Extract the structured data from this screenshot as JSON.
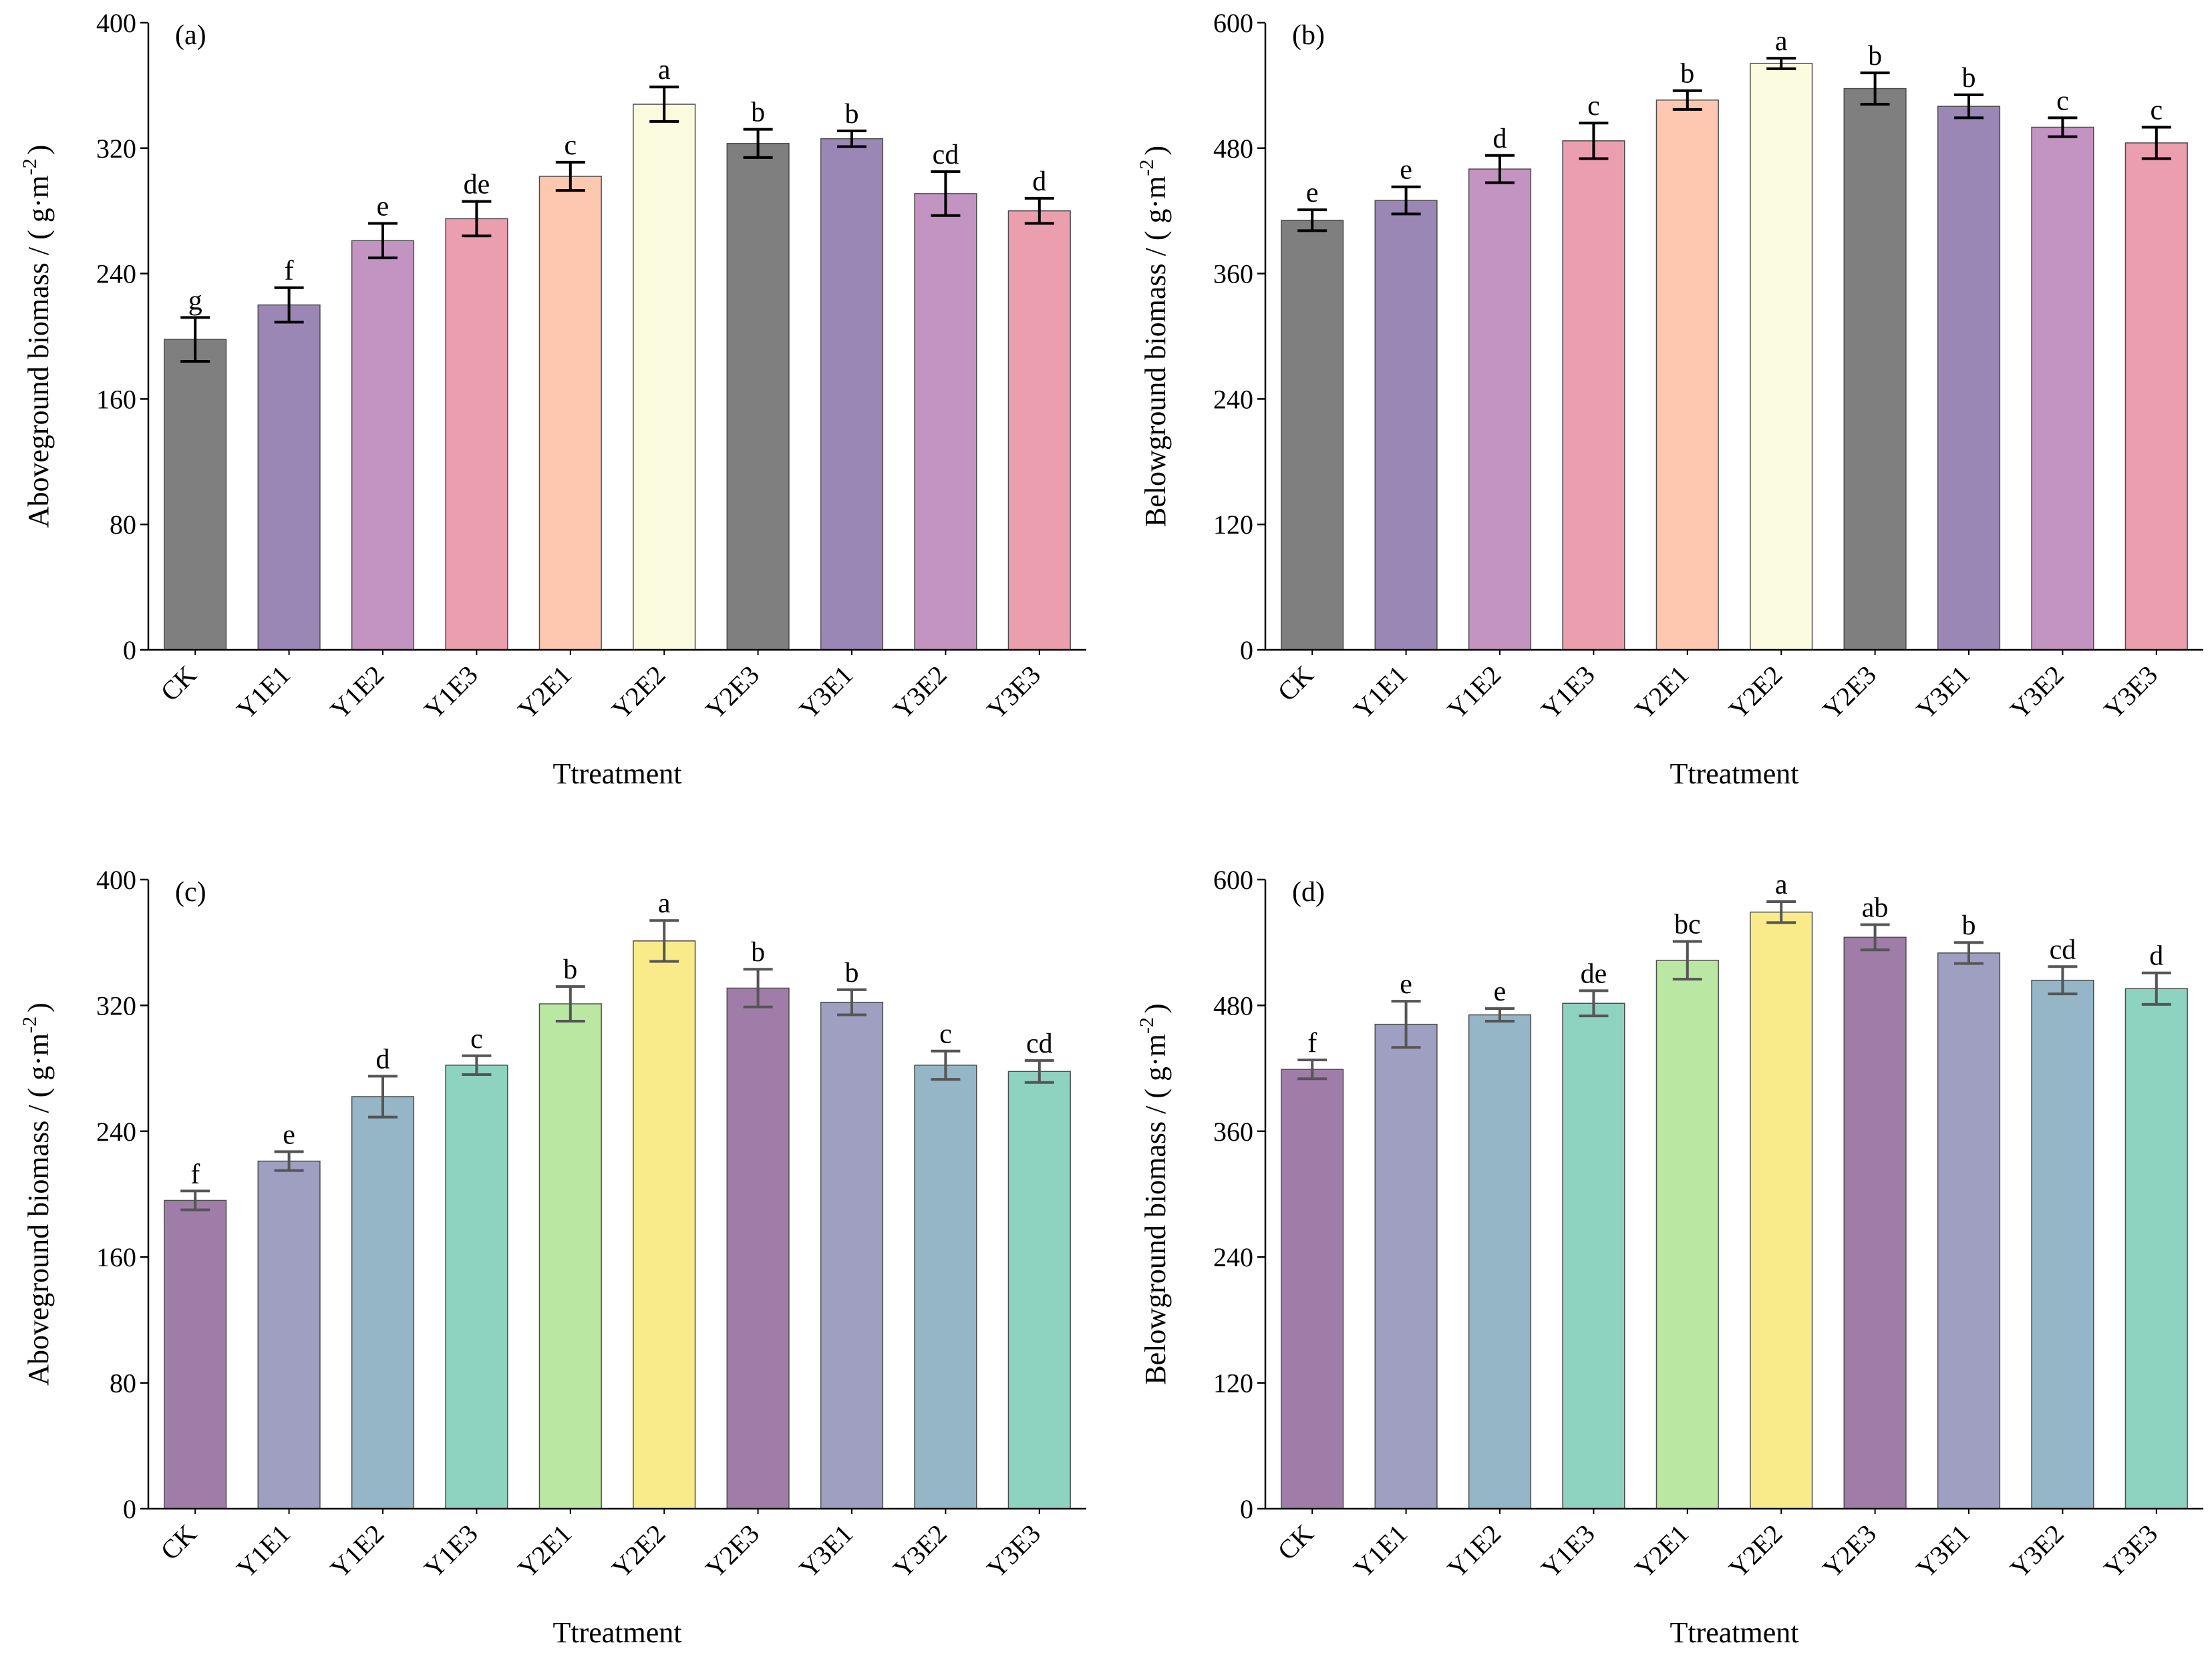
{
  "figure": {
    "categories": [
      "CK",
      "Y1E1",
      "Y1E2",
      "Y1E3",
      "Y2E1",
      "Y2E2",
      "Y2E3",
      "Y3E1",
      "Y3E2",
      "Y3E3"
    ]
  },
  "chart_data": [
    {
      "type": "bar",
      "panel": "(a)",
      "title": "",
      "xlabel": "Ttreatment",
      "ylabel": "Aboveground biomass / ( g·m⁻² )",
      "ylabel_text": "Aboveground biomass / ( g·m",
      "ylabel_exp": "-2",
      "ylabel_close": ")",
      "categories": [
        "CK",
        "Y1E1",
        "Y1E2",
        "Y1E3",
        "Y2E1",
        "Y2E2",
        "Y2E3",
        "Y3E1",
        "Y3E2",
        "Y3E3"
      ],
      "values": [
        198,
        220,
        261,
        275,
        302,
        348,
        323,
        326,
        291,
        280
      ],
      "errors": [
        14,
        11,
        11,
        11,
        9,
        11,
        9,
        5,
        14,
        8
      ],
      "letters": [
        "g",
        "f",
        "e",
        "de",
        "c",
        "a",
        "b",
        "b",
        "cd",
        "d"
      ],
      "ylim": [
        0,
        400
      ],
      "yticks": [
        0,
        80,
        160,
        240,
        320,
        400
      ],
      "colors": [
        "#7f7f7f",
        "#9b87b5",
        "#c393c2",
        "#eb9fae",
        "#fec8b0",
        "#fbfbdf",
        "#7f7f7f",
        "#9b87b5",
        "#c393c2",
        "#eb9fae"
      ],
      "error_color": "#000000"
    },
    {
      "type": "bar",
      "panel": "(b)",
      "title": "",
      "xlabel": "Ttreatment",
      "ylabel": "Belowground  biomass / ( g·m⁻² )",
      "ylabel_text": "Belowground  biomass / ( g·m",
      "ylabel_exp": "-2",
      "ylabel_close": ")",
      "categories": [
        "CK",
        "Y1E1",
        "Y1E2",
        "Y1E3",
        "Y2E1",
        "Y2E2",
        "Y2E3",
        "Y3E1",
        "Y3E2",
        "Y3E3"
      ],
      "values": [
        411,
        430,
        460,
        487,
        526,
        561,
        537,
        520,
        500,
        485
      ],
      "errors": [
        10,
        13,
        13,
        17,
        9,
        5,
        15,
        11,
        9,
        15
      ],
      "letters": [
        "e",
        "e",
        "d",
        "c",
        "b",
        "a",
        "b",
        "b",
        "c",
        "c"
      ],
      "ylim": [
        0,
        600
      ],
      "yticks": [
        0,
        120,
        240,
        360,
        480,
        600
      ],
      "colors": [
        "#7f7f7f",
        "#9b87b5",
        "#c393c2",
        "#eb9fae",
        "#fec8b0",
        "#fbfbdf",
        "#7f7f7f",
        "#9b87b5",
        "#c393c2",
        "#eb9fae"
      ],
      "error_color": "#000000"
    },
    {
      "type": "bar",
      "panel": "(c)",
      "title": "",
      "xlabel": "Ttreatment",
      "ylabel": "Aboveground biomass / ( g·m⁻² )",
      "ylabel_text": "Aboveground biomass / ( g·m",
      "ylabel_exp": "-2",
      "ylabel_close": ")",
      "categories": [
        "CK",
        "Y1E1",
        "Y1E2",
        "Y1E3",
        "Y2E1",
        "Y2E2",
        "Y2E3",
        "Y3E1",
        "Y3E2",
        "Y3E3"
      ],
      "values": [
        196,
        221,
        262,
        282,
        321,
        361,
        331,
        322,
        282,
        278
      ],
      "errors": [
        6,
        6,
        13,
        6,
        11,
        13,
        12,
        8,
        9,
        7
      ],
      "letters": [
        "f",
        "e",
        "d",
        "c",
        "b",
        "a",
        "b",
        "b",
        "c",
        "cd"
      ],
      "ylim": [
        0,
        400
      ],
      "yticks": [
        0,
        80,
        160,
        240,
        320,
        400
      ],
      "colors": [
        "#a07da8",
        "#9f9fc2",
        "#94b6c6",
        "#8ed2c0",
        "#bae8a2",
        "#f9eb8a",
        "#a07da8",
        "#9f9fc2",
        "#94b6c6",
        "#8ed2c0"
      ],
      "error_color": "#555555"
    },
    {
      "type": "bar",
      "panel": "(d)",
      "title": "",
      "xlabel": "Ttreatment",
      "ylabel": "Belowground biomass / ( g·m⁻² )",
      "ylabel_text": "Belowground biomass / ( g·m",
      "ylabel_exp": "-2",
      "ylabel_close": ")",
      "categories": [
        "CK",
        "Y1E1",
        "Y1E2",
        "Y1E3",
        "Y2E1",
        "Y2E2",
        "Y2E3",
        "Y3E1",
        "Y3E2",
        "Y3E3"
      ],
      "values": [
        419,
        462,
        471,
        482,
        523,
        569,
        545,
        530,
        504,
        496
      ],
      "errors": [
        9,
        22,
        6,
        12,
        18,
        10,
        12,
        10,
        13,
        15
      ],
      "letters": [
        "f",
        "e",
        "e",
        "de",
        "bc",
        "a",
        "ab",
        "b",
        "cd",
        "d"
      ],
      "ylim": [
        0,
        600
      ],
      "yticks": [
        0,
        120,
        240,
        360,
        480,
        600
      ],
      "colors": [
        "#a07da8",
        "#9f9fc2",
        "#94b6c6",
        "#8ed2c0",
        "#bae8a2",
        "#f9eb8a",
        "#a07da8",
        "#9f9fc2",
        "#94b6c6",
        "#8ed2c0"
      ],
      "error_color": "#555555"
    }
  ]
}
